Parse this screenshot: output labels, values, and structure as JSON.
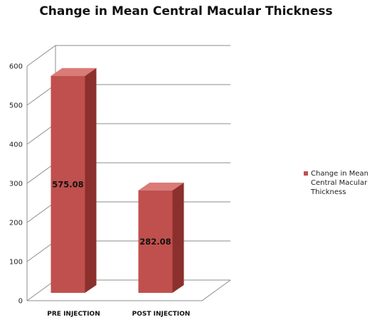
{
  "chart_data": {
    "type": "bar",
    "title": "Change in Mean Central Macular Thickness",
    "xlabel": "",
    "ylabel": "",
    "categories": [
      "PRE INJECTION",
      "POST INJECTION"
    ],
    "series": [
      {
        "name": "Change in Mean Central Macular Thickness",
        "values": [
          575.08,
          282.08
        ],
        "data_labels": [
          "575.08",
          "282.08"
        ]
      }
    ],
    "ylim": [
      0,
      600
    ],
    "yticks": [
      "0",
      "100",
      "200",
      "300",
      "400",
      "500",
      "600"
    ],
    "grid": true,
    "legend_position": "right",
    "style": "3d",
    "colors": {
      "bar_front": "#c0504d",
      "bar_side": "#8b302c",
      "bar_top": "#d97b77",
      "grid": "#8c8c8c"
    }
  }
}
